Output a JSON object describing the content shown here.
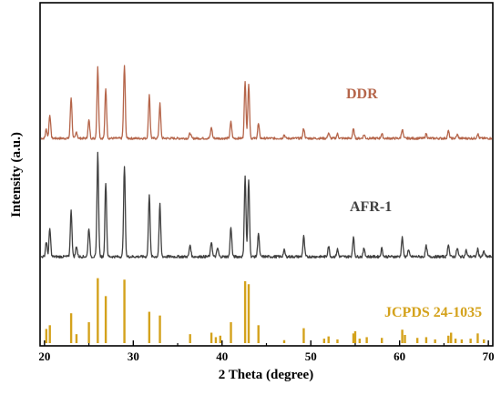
{
  "chart_data": {
    "type": "line",
    "xlabel": "2 Theta (degree)",
    "ylabel": "Intensity (a.u.)",
    "xlim": [
      19.5,
      70.5
    ],
    "xticks": [
      20,
      30,
      40,
      50,
      60,
      70
    ],
    "yticks_shown": false,
    "grid": false,
    "series": [
      {
        "name": "DDR",
        "color": "#b5654a",
        "style": "line",
        "peaks": [
          {
            "x": 20.2,
            "y": 0.1
          },
          {
            "x": 20.6,
            "y": 0.26
          },
          {
            "x": 23.0,
            "y": 0.45
          },
          {
            "x": 23.6,
            "y": 0.07
          },
          {
            "x": 25.0,
            "y": 0.2
          },
          {
            "x": 26.0,
            "y": 0.78
          },
          {
            "x": 26.9,
            "y": 0.55
          },
          {
            "x": 29.0,
            "y": 0.8
          },
          {
            "x": 31.8,
            "y": 0.48
          },
          {
            "x": 33.0,
            "y": 0.38
          },
          {
            "x": 36.4,
            "y": 0.06
          },
          {
            "x": 38.8,
            "y": 0.12
          },
          {
            "x": 41.0,
            "y": 0.18
          },
          {
            "x": 42.6,
            "y": 0.62
          },
          {
            "x": 43.0,
            "y": 0.6
          },
          {
            "x": 44.1,
            "y": 0.16
          },
          {
            "x": 47.0,
            "y": 0.04
          },
          {
            "x": 49.2,
            "y": 0.11
          },
          {
            "x": 52.0,
            "y": 0.06
          },
          {
            "x": 53.0,
            "y": 0.05
          },
          {
            "x": 54.8,
            "y": 0.1
          },
          {
            "x": 56.0,
            "y": 0.04
          },
          {
            "x": 58.0,
            "y": 0.05
          },
          {
            "x": 60.3,
            "y": 0.1
          },
          {
            "x": 63.0,
            "y": 0.05
          },
          {
            "x": 65.5,
            "y": 0.08
          },
          {
            "x": 66.5,
            "y": 0.04
          },
          {
            "x": 68.8,
            "y": 0.05
          }
        ]
      },
      {
        "name": "AFR-1",
        "color": "#404040",
        "style": "line",
        "peaks": [
          {
            "x": 20.2,
            "y": 0.14
          },
          {
            "x": 20.6,
            "y": 0.26
          },
          {
            "x": 23.0,
            "y": 0.43
          },
          {
            "x": 23.6,
            "y": 0.1
          },
          {
            "x": 25.0,
            "y": 0.27
          },
          {
            "x": 26.0,
            "y": 0.98
          },
          {
            "x": 26.9,
            "y": 0.7
          },
          {
            "x": 29.0,
            "y": 0.85
          },
          {
            "x": 31.8,
            "y": 0.59
          },
          {
            "x": 33.0,
            "y": 0.49
          },
          {
            "x": 36.4,
            "y": 0.11
          },
          {
            "x": 38.8,
            "y": 0.14
          },
          {
            "x": 39.5,
            "y": 0.08
          },
          {
            "x": 41.0,
            "y": 0.28
          },
          {
            "x": 42.6,
            "y": 0.75
          },
          {
            "x": 43.0,
            "y": 0.72
          },
          {
            "x": 44.1,
            "y": 0.22
          },
          {
            "x": 47.0,
            "y": 0.06
          },
          {
            "x": 49.2,
            "y": 0.19
          },
          {
            "x": 52.0,
            "y": 0.1
          },
          {
            "x": 53.0,
            "y": 0.07
          },
          {
            "x": 54.8,
            "y": 0.18
          },
          {
            "x": 56.0,
            "y": 0.08
          },
          {
            "x": 58.0,
            "y": 0.08
          },
          {
            "x": 60.3,
            "y": 0.18
          },
          {
            "x": 61.0,
            "y": 0.06
          },
          {
            "x": 63.0,
            "y": 0.1
          },
          {
            "x": 65.5,
            "y": 0.12
          },
          {
            "x": 66.5,
            "y": 0.08
          },
          {
            "x": 67.5,
            "y": 0.06
          },
          {
            "x": 68.8,
            "y": 0.07
          },
          {
            "x": 69.5,
            "y": 0.05
          }
        ]
      },
      {
        "name": "JCPDS 24-1035",
        "color": "#d4a21c",
        "style": "stick",
        "peaks": [
          {
            "x": 20.2,
            "y": 0.19
          },
          {
            "x": 20.6,
            "y": 0.24
          },
          {
            "x": 23.0,
            "y": 0.4
          },
          {
            "x": 23.6,
            "y": 0.12
          },
          {
            "x": 25.0,
            "y": 0.28
          },
          {
            "x": 26.0,
            "y": 0.87
          },
          {
            "x": 26.9,
            "y": 0.63
          },
          {
            "x": 29.0,
            "y": 0.85
          },
          {
            "x": 31.8,
            "y": 0.42
          },
          {
            "x": 33.0,
            "y": 0.37
          },
          {
            "x": 36.4,
            "y": 0.12
          },
          {
            "x": 38.8,
            "y": 0.14
          },
          {
            "x": 39.3,
            "y": 0.08
          },
          {
            "x": 39.8,
            "y": 0.1
          },
          {
            "x": 41.0,
            "y": 0.28
          },
          {
            "x": 42.6,
            "y": 0.83
          },
          {
            "x": 43.0,
            "y": 0.79
          },
          {
            "x": 44.1,
            "y": 0.24
          },
          {
            "x": 47.0,
            "y": 0.04
          },
          {
            "x": 49.2,
            "y": 0.2
          },
          {
            "x": 51.5,
            "y": 0.06
          },
          {
            "x": 52.0,
            "y": 0.09
          },
          {
            "x": 53.0,
            "y": 0.05
          },
          {
            "x": 54.8,
            "y": 0.13
          },
          {
            "x": 55.0,
            "y": 0.16
          },
          {
            "x": 55.5,
            "y": 0.06
          },
          {
            "x": 56.3,
            "y": 0.08
          },
          {
            "x": 58.0,
            "y": 0.07
          },
          {
            "x": 60.3,
            "y": 0.18
          },
          {
            "x": 60.6,
            "y": 0.11
          },
          {
            "x": 62.0,
            "y": 0.07
          },
          {
            "x": 63.0,
            "y": 0.08
          },
          {
            "x": 64.0,
            "y": 0.05
          },
          {
            "x": 65.5,
            "y": 0.1
          },
          {
            "x": 65.8,
            "y": 0.14
          },
          {
            "x": 66.3,
            "y": 0.06
          },
          {
            "x": 67.0,
            "y": 0.05
          },
          {
            "x": 68.0,
            "y": 0.06
          },
          {
            "x": 68.8,
            "y": 0.13
          },
          {
            "x": 69.5,
            "y": 0.05
          }
        ]
      }
    ]
  }
}
